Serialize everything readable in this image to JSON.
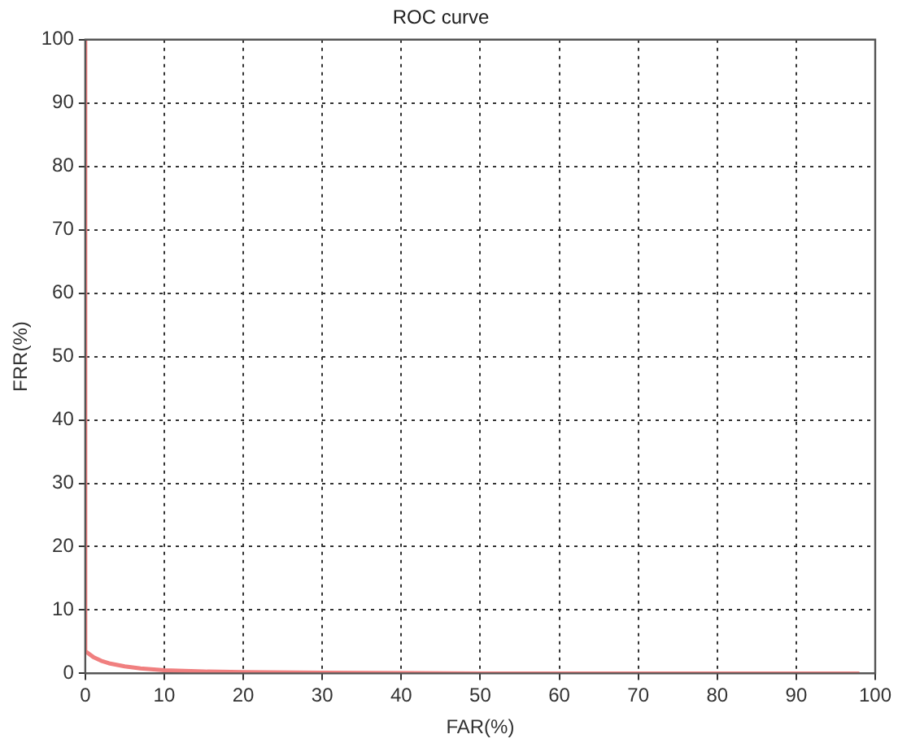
{
  "chart_data": {
    "type": "line",
    "title": "ROC curve",
    "xlabel": "FAR(%)",
    "ylabel": "FRR(%)",
    "series": [
      {
        "color": "#f07f7f",
        "x": [
          0,
          0,
          1,
          2,
          3,
          5,
          7,
          10,
          15,
          20,
          30,
          50,
          70,
          98
        ],
        "values": [
          100,
          3.5,
          2.6,
          2,
          1.6,
          1.1,
          0.8,
          0.5,
          0.3,
          0.2,
          0.1,
          0,
          0,
          0
        ]
      }
    ],
    "xlim": [
      0,
      100
    ],
    "xticks": [
      0,
      10,
      20,
      30,
      40,
      50,
      60,
      70,
      80,
      90,
      100
    ],
    "ylim": [
      0,
      100
    ],
    "yticks": [
      0,
      10,
      20,
      30,
      40,
      50,
      60,
      70,
      80,
      90,
      100
    ],
    "grid": true,
    "marker": "none",
    "line_style": "solid"
  }
}
